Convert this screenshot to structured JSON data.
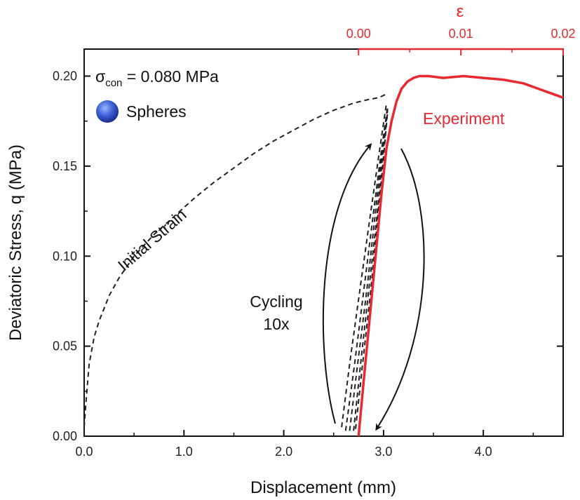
{
  "chart_data": {
    "type": "line",
    "title": "",
    "xlabel": "Displacement (mm)",
    "ylabel": "Deviatoric Stress, q (MPa)",
    "top_axis_label": "ε",
    "xlim": [
      0,
      4.8
    ],
    "ylim": [
      0,
      0.215
    ],
    "top_xlim": [
      0,
      0.02
    ],
    "x_ticks": [
      "0.0",
      "1.0",
      "2.0",
      "3.0",
      "4.0"
    ],
    "y_ticks": [
      "0.00",
      "0.05",
      "0.10",
      "0.15",
      "0.20"
    ],
    "top_ticks": [
      "0.00",
      "0.01",
      "0.02"
    ],
    "colors": {
      "experiment": "#e8292f",
      "model": "#222222",
      "sphere": "#3a5fd6"
    },
    "annotations": {
      "condition_sigma": "σ",
      "condition_sub": "con",
      "condition_value": " = 0.080 MPa",
      "material": "Spheres",
      "initial_strain": "Initial Strain",
      "cycling_line1": "Cycling",
      "cycling_line2": "10x",
      "experiment": "Experiment"
    },
    "series": [
      {
        "name": "Initial Strain",
        "style": "dashed",
        "x": [
          0.0,
          0.02,
          0.05,
          0.1,
          0.15,
          0.25,
          0.35,
          0.5,
          0.7,
          0.9,
          1.1,
          1.3,
          1.5,
          1.7,
          1.9,
          2.1,
          2.3,
          2.5,
          2.7,
          2.85,
          2.95,
          3.03
        ],
        "y": [
          0.005,
          0.02,
          0.04,
          0.055,
          0.064,
          0.078,
          0.088,
          0.1,
          0.112,
          0.122,
          0.132,
          0.141,
          0.149,
          0.157,
          0.164,
          0.17,
          0.176,
          0.181,
          0.185,
          0.187,
          0.188,
          0.19
        ]
      },
      {
        "name": "Cycling 10x",
        "style": "dashed",
        "loops": [
          {
            "x": [
              2.58,
              2.66,
              2.76,
              2.86,
              2.95,
              3.03
            ],
            "y": [
              0.005,
              0.04,
              0.08,
              0.12,
              0.155,
              0.185
            ]
          },
          {
            "x": [
              2.62,
              2.71,
              2.8,
              2.89,
              2.97,
              3.04
            ],
            "y": [
              0.003,
              0.04,
              0.08,
              0.12,
              0.155,
              0.183
            ]
          },
          {
            "x": [
              2.66,
              2.74,
              2.83,
              2.91,
              2.98,
              3.04
            ],
            "y": [
              0.003,
              0.04,
              0.08,
              0.12,
              0.155,
              0.182
            ]
          },
          {
            "x": [
              2.7,
              2.77,
              2.85,
              2.93,
              2.99,
              3.04
            ],
            "y": [
              0.003,
              0.04,
              0.08,
              0.12,
              0.155,
              0.181
            ]
          },
          {
            "x": [
              2.72,
              2.79,
              2.87,
              2.94,
              3.0,
              3.04
            ],
            "y": [
              0.004,
              0.04,
              0.08,
              0.12,
              0.155,
              0.18
            ]
          }
        ]
      },
      {
        "name": "Experiment",
        "style": "solid",
        "x": [
          2.75,
          2.8,
          2.86,
          2.92,
          2.98,
          3.03,
          3.08,
          3.13,
          3.18,
          3.24,
          3.3,
          3.36,
          3.45,
          3.6,
          3.8,
          4.0,
          4.2,
          4.4,
          4.55,
          4.7,
          4.8
        ],
        "y": [
          0.0,
          0.03,
          0.065,
          0.1,
          0.135,
          0.16,
          0.175,
          0.186,
          0.193,
          0.197,
          0.199,
          0.2,
          0.2,
          0.199,
          0.2,
          0.199,
          0.198,
          0.196,
          0.193,
          0.19,
          0.188
        ]
      }
    ]
  }
}
